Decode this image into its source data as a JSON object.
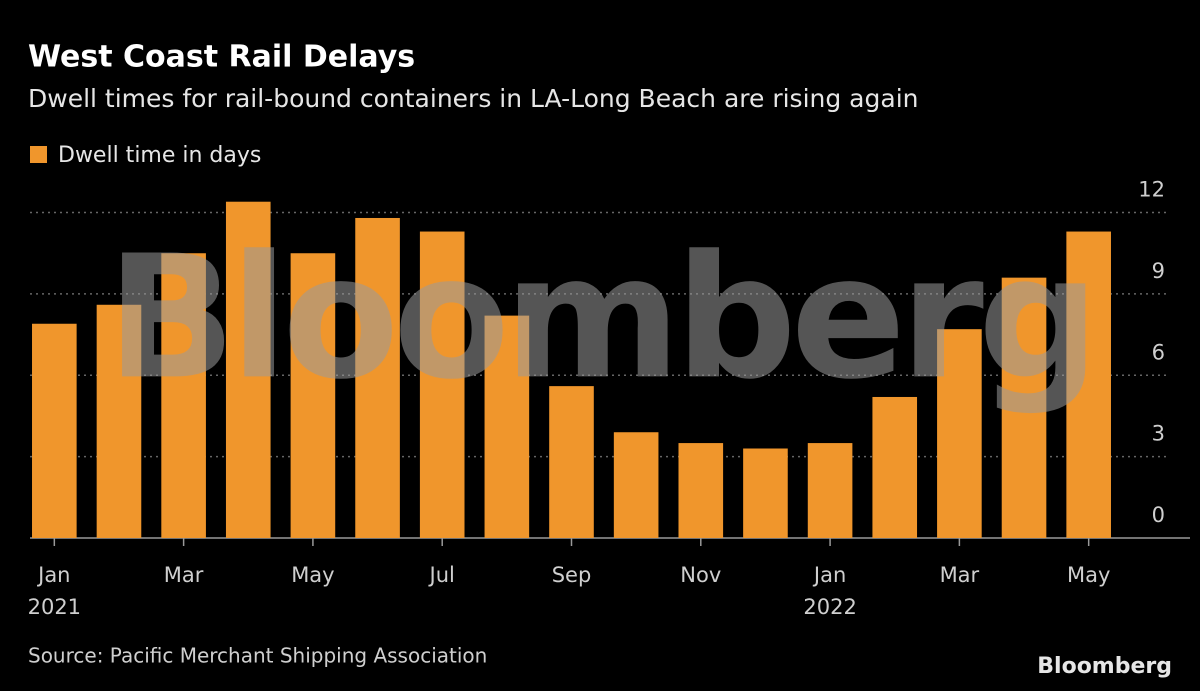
{
  "chart_data": {
    "type": "bar",
    "title": "West Coast Rail Delays",
    "subtitle": "Dwell times for rail-bound containers in LA-Long Beach are rising again",
    "categories": [
      "Jan 2021",
      null,
      "Mar",
      null,
      "May",
      null,
      "Jul",
      null,
      "Sep",
      null,
      "Nov",
      null,
      "Jan 2022",
      null,
      "Mar",
      null,
      "May"
    ],
    "series": [
      {
        "name": "Dwell time in days",
        "color": "#f0962c",
        "values": [
          7.9,
          8.6,
          10.5,
          12.4,
          10.5,
          11.8,
          11.3,
          8.2,
          5.6,
          3.9,
          3.5,
          3.3,
          3.5,
          5.2,
          7.7,
          9.6,
          11.3
        ]
      }
    ],
    "ylim": [
      0,
      12.5
    ],
    "yticks": [
      0,
      3,
      6,
      9,
      12
    ],
    "grid": true,
    "source": "Source: Pacific Merchant Shipping Association",
    "watermark": "Bloomberg",
    "logo": "Bloomberg"
  }
}
